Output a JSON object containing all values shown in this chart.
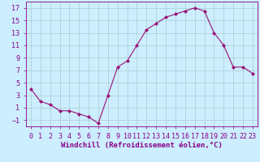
{
  "x": [
    0,
    1,
    2,
    3,
    4,
    5,
    6,
    7,
    8,
    9,
    10,
    11,
    12,
    13,
    14,
    15,
    16,
    17,
    18,
    19,
    20,
    21,
    22,
    23
  ],
  "y": [
    4,
    2,
    1.5,
    0.5,
    0.5,
    0,
    -0.5,
    -1.5,
    3,
    7.5,
    8.5,
    11,
    13.5,
    14.5,
    15.5,
    16,
    16.5,
    17,
    16.5,
    13,
    11,
    7.5,
    7.5,
    6.5
  ],
  "xlabel": "Windchill (Refroidissement éolien,°C)",
  "xlim": [
    -0.5,
    23.5
  ],
  "ylim": [
    -2,
    18
  ],
  "yticks": [
    -1,
    1,
    3,
    5,
    7,
    9,
    11,
    13,
    15,
    17
  ],
  "xticks": [
    0,
    1,
    2,
    3,
    4,
    5,
    6,
    7,
    8,
    9,
    10,
    11,
    12,
    13,
    14,
    15,
    16,
    17,
    18,
    19,
    20,
    21,
    22,
    23
  ],
  "line_color": "#991177",
  "marker": "D",
  "marker_size": 2.0,
  "bg_color": "#cceeff",
  "grid_color": "#aacccc",
  "axis_color": "#880088",
  "xlabel_fontsize": 6.5,
  "tick_fontsize": 6.0
}
